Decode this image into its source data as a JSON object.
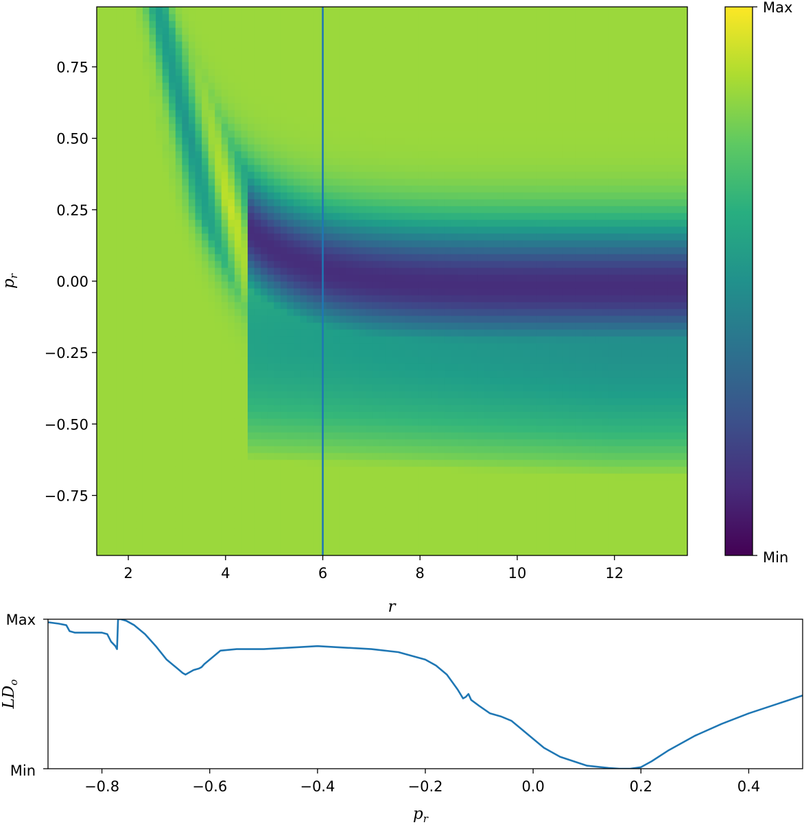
{
  "chart_data": [
    {
      "type": "heatmap",
      "title": "",
      "xlabel": "r",
      "ylabel": "p_r",
      "xlim": [
        1.35,
        13.5
      ],
      "ylim": [
        -0.96,
        0.96
      ],
      "xticks": [
        2,
        4,
        6,
        8,
        10,
        12
      ],
      "yticks": [
        -0.75,
        -0.5,
        -0.25,
        0.0,
        0.25,
        0.5,
        0.75
      ],
      "ytick_labels": [
        "−0.75",
        "−0.50",
        "−0.25",
        "0.00",
        "0.25",
        "0.50",
        "0.75"
      ],
      "colormap": "viridis",
      "colorbar": {
        "max_label": "Max",
        "min_label": "Min"
      },
      "vertical_line": {
        "x": 6,
        "color": "#1f77b4"
      },
      "grid": false
    },
    {
      "type": "line",
      "title": "",
      "xlabel": "p_r",
      "ylabel": "LD_o",
      "xlim": [
        -0.9,
        0.5
      ],
      "ylim": [
        0,
        1
      ],
      "xticks": [
        -0.8,
        -0.6,
        -0.4,
        -0.2,
        0.0,
        0.2,
        0.4
      ],
      "xtick_labels": [
        "−0.8",
        "−0.6",
        "−0.4",
        "−0.2",
        "0.0",
        "0.2",
        "0.4"
      ],
      "ytick_labels": [
        "Min",
        "Max"
      ],
      "grid": false,
      "series": [
        {
          "color": "#1f77b4",
          "x": [
            -0.9,
            -0.88,
            -0.866,
            -0.86,
            -0.85,
            -0.84,
            -0.82,
            -0.8,
            -0.79,
            -0.783,
            -0.775,
            -0.772,
            -0.77,
            -0.769,
            -0.765,
            -0.755,
            -0.74,
            -0.72,
            -0.7,
            -0.68,
            -0.66,
            -0.65,
            -0.645,
            -0.64,
            -0.63,
            -0.62,
            -0.615,
            -0.61,
            -0.6,
            -0.58,
            -0.55,
            -0.5,
            -0.45,
            -0.4,
            -0.35,
            -0.3,
            -0.25,
            -0.2,
            -0.18,
            -0.16,
            -0.14,
            -0.13,
            -0.125,
            -0.12,
            -0.115,
            -0.1,
            -0.08,
            -0.06,
            -0.04,
            -0.02,
            0.0,
            0.02,
            0.05,
            0.1,
            0.14,
            0.16,
            0.18,
            0.2,
            0.22,
            0.25,
            0.3,
            0.35,
            0.4,
            0.45,
            0.5
          ],
          "y": [
            0.98,
            0.97,
            0.96,
            0.92,
            0.91,
            0.91,
            0.91,
            0.91,
            0.9,
            0.85,
            0.82,
            0.8,
            1.0,
            1.0,
            1.0,
            0.99,
            0.96,
            0.9,
            0.82,
            0.73,
            0.67,
            0.64,
            0.63,
            0.64,
            0.66,
            0.67,
            0.68,
            0.7,
            0.73,
            0.79,
            0.8,
            0.8,
            0.81,
            0.82,
            0.81,
            0.8,
            0.78,
            0.73,
            0.69,
            0.63,
            0.53,
            0.47,
            0.48,
            0.5,
            0.46,
            0.42,
            0.37,
            0.35,
            0.32,
            0.26,
            0.2,
            0.14,
            0.08,
            0.02,
            0.005,
            0.0,
            0.0,
            0.01,
            0.05,
            0.12,
            0.22,
            0.3,
            0.37,
            0.43,
            0.49
          ]
        }
      ]
    }
  ]
}
